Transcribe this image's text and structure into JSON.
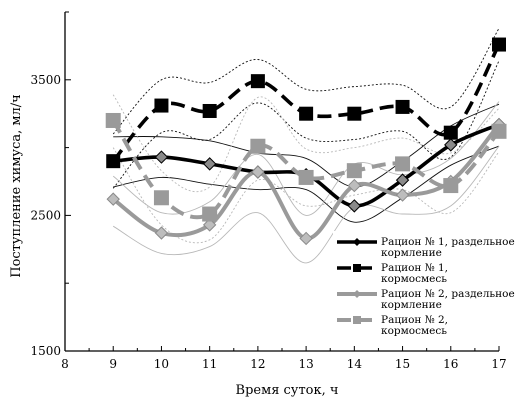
{
  "chart_data": {
    "type": "line",
    "xlabel": "Время суток, ч",
    "ylabel": "Поступление химуса, мл/ч",
    "xlim": [
      8,
      17
    ],
    "ylim": [
      1500,
      4000
    ],
    "x_ticks": [
      "8",
      "9",
      "10",
      "11",
      "12",
      "13",
      "14",
      "15",
      "16",
      "17"
    ],
    "y_ticks": [
      "1500",
      "2500",
      "3500"
    ],
    "x": [
      9,
      10,
      11,
      12,
      13,
      14,
      15,
      16,
      17
    ],
    "series": [
      {
        "name": "Рацион № 1, раздельное кормление",
        "legend_lines": [
          "Рацион № 1, раздельное",
          "кормление"
        ],
        "values": [
          2900,
          2930,
          2880,
          2820,
          2800,
          2570,
          2760,
          3020,
          3170
        ],
        "upper": [
          3080,
          3080,
          3050,
          2960,
          2920,
          2710,
          2900,
          3160,
          3320
        ],
        "lower": [
          2710,
          2780,
          2730,
          2690,
          2690,
          2450,
          2630,
          2870,
          3010
        ],
        "color": "#000000",
        "marker": "diamond",
        "style": "solid"
      },
      {
        "name": "Рацион № 1, кормосмесь",
        "legend_lines": [
          "Рацион № 1,",
          "кормосмесь"
        ],
        "values": [
          2900,
          3310,
          3270,
          3490,
          3250,
          3250,
          3300,
          3110,
          3760
        ],
        "upper": [
          3100,
          3500,
          3480,
          3650,
          3430,
          3450,
          3460,
          3300,
          3880
        ],
        "lower": [
          2700,
          3110,
          3060,
          3330,
          3070,
          3060,
          3120,
          2930,
          3640
        ],
        "color": "#000000",
        "marker": "square",
        "style": "dashed"
      },
      {
        "name": "Рацион № 2, раздельное кормление",
        "legend_lines": [
          "Рацион № 2, раздельное",
          "кормление"
        ],
        "values": [
          2620,
          2370,
          2430,
          2820,
          2330,
          2720,
          2650,
          2750,
          3170
        ],
        "upper": [
          2790,
          2520,
          2600,
          2950,
          2500,
          2880,
          2800,
          2920,
          3340
        ],
        "lower": [
          2420,
          2220,
          2270,
          2520,
          2150,
          2560,
          2510,
          2570,
          3010
        ],
        "color": "#9a9a9a",
        "marker": "diamond",
        "style": "solid"
      },
      {
        "name": "Рацион № 2, кормосмесь",
        "legend_lines": [
          "Рацион № 2,",
          "кормосмесь"
        ],
        "values": [
          3200,
          2630,
          2510,
          3010,
          2780,
          2830,
          2880,
          2720,
          3120
        ],
        "upper": [
          3390,
          2830,
          2710,
          3370,
          2990,
          3000,
          3070,
          2960,
          3290
        ],
        "lower": [
          3000,
          2430,
          2320,
          2760,
          2570,
          2650,
          2690,
          2520,
          2970
        ],
        "color": "#9a9a9a",
        "marker": "square",
        "style": "dashed"
      }
    ]
  }
}
